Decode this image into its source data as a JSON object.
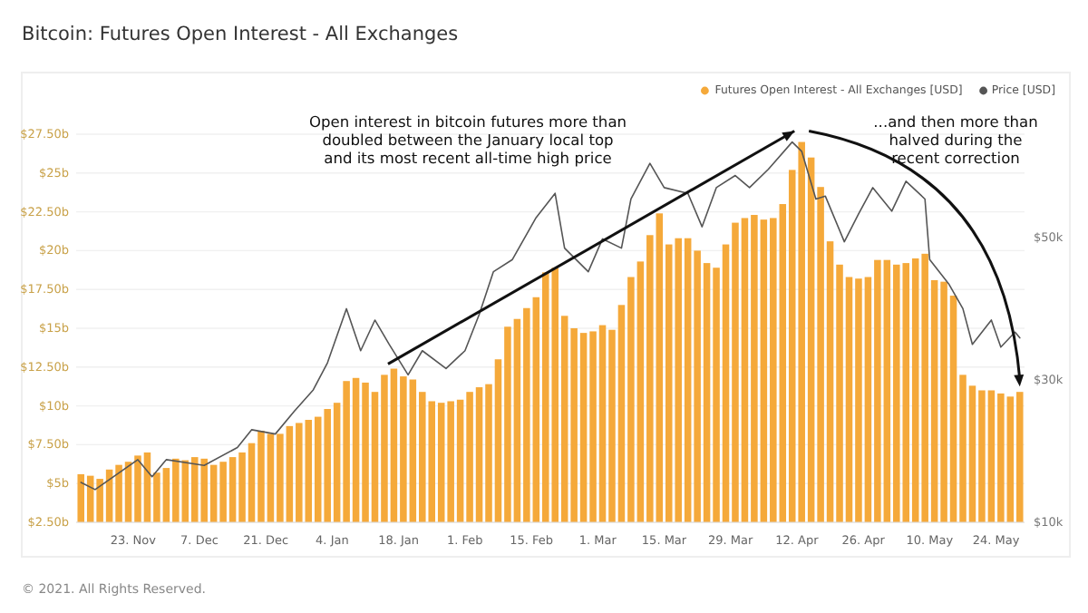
{
  "chart_data": {
    "type": "bar",
    "title": "Bitcoin: Futures Open Interest - All Exchanges",
    "annotations": [
      "Open interest in bitcoin futures more than\ndoubled between the January local top\nand its most recent all-time high price",
      "...and then more than\nhalved during the\nrecent correction",
      "© 2021. All Rights Reserved."
    ],
    "legend": "top right",
    "grid": "y",
    "xlim": [
      "2020-11-11",
      "2021-05-30"
    ],
    "xticks": [
      {
        "value": "2020-11-23",
        "label": "23. Nov"
      },
      {
        "value": "2020-12-07",
        "label": "7. Dec"
      },
      {
        "value": "2020-12-21",
        "label": "21. Dec"
      },
      {
        "value": "2021-01-04",
        "label": "4. Jan"
      },
      {
        "value": "2021-01-18",
        "label": "18. Jan"
      },
      {
        "value": "2021-02-01",
        "label": "1. Feb"
      },
      {
        "value": "2021-02-15",
        "label": "15. Feb"
      },
      {
        "value": "2021-03-01",
        "label": "1. Mar"
      },
      {
        "value": "2021-03-15",
        "label": "15. Mar"
      },
      {
        "value": "2021-03-29",
        "label": "29. Mar"
      },
      {
        "value": "2021-04-12",
        "label": "12. Apr"
      },
      {
        "value": "2021-04-26",
        "label": "26. Apr"
      },
      {
        "value": "2021-05-10",
        "label": "10. May"
      },
      {
        "value": "2021-05-24",
        "label": "24. May"
      }
    ],
    "ylim": [
      2.5,
      27.5
    ],
    "yticks": [
      {
        "value": 2.5,
        "label": "$2.50b"
      },
      {
        "value": 5,
        "label": "$5b"
      },
      {
        "value": 7.5,
        "label": "$7.50b"
      },
      {
        "value": 10,
        "label": "$10b"
      },
      {
        "value": 12.5,
        "label": "$12.50b"
      },
      {
        "value": 15,
        "label": "$15b"
      },
      {
        "value": 17.5,
        "label": "$17.50b"
      },
      {
        "value": 20,
        "label": "$20b"
      },
      {
        "value": 22.5,
        "label": "$22.50b"
      },
      {
        "value": 25,
        "label": "$25b"
      },
      {
        "value": 27.5,
        "label": "$27.50b"
      }
    ],
    "y2lim": [
      10000,
      64500
    ],
    "y2ticks": [
      {
        "value": 10000,
        "label": "$10k"
      },
      {
        "value": 30000,
        "label": "$30k"
      },
      {
        "value": 50000,
        "label": "$50k"
      }
    ],
    "series": [
      {
        "name": "Futures Open Interest - All Exchanges [USD]",
        "color": "#f5a93a",
        "x": [
          "2020-11-12",
          "2020-11-14",
          "2020-11-16",
          "2020-11-18",
          "2020-11-20",
          "2020-11-22",
          "2020-11-24",
          "2020-11-26",
          "2020-11-28",
          "2020-11-30",
          "2020-12-02",
          "2020-12-04",
          "2020-12-06",
          "2020-12-08",
          "2020-12-10",
          "2020-12-12",
          "2020-12-14",
          "2020-12-16",
          "2020-12-18",
          "2020-12-20",
          "2020-12-22",
          "2020-12-24",
          "2020-12-26",
          "2020-12-28",
          "2020-12-30",
          "2021-01-01",
          "2021-01-03",
          "2021-01-05",
          "2021-01-07",
          "2021-01-09",
          "2021-01-11",
          "2021-01-13",
          "2021-01-15",
          "2021-01-17",
          "2021-01-19",
          "2021-01-21",
          "2021-01-23",
          "2021-01-25",
          "2021-01-27",
          "2021-01-29",
          "2021-01-31",
          "2021-02-02",
          "2021-02-04",
          "2021-02-06",
          "2021-02-08",
          "2021-02-10",
          "2021-02-12",
          "2021-02-14",
          "2021-02-16",
          "2021-02-18",
          "2021-02-20",
          "2021-02-22",
          "2021-02-24",
          "2021-02-26",
          "2021-02-28",
          "2021-03-02",
          "2021-03-04",
          "2021-03-06",
          "2021-03-08",
          "2021-03-10",
          "2021-03-12",
          "2021-03-14",
          "2021-03-16",
          "2021-03-18",
          "2021-03-20",
          "2021-03-22",
          "2021-03-24",
          "2021-03-26",
          "2021-03-28",
          "2021-03-30",
          "2021-04-01",
          "2021-04-03",
          "2021-04-05",
          "2021-04-07",
          "2021-04-09",
          "2021-04-11",
          "2021-04-13",
          "2021-04-15",
          "2021-04-17",
          "2021-04-19",
          "2021-04-21",
          "2021-04-23",
          "2021-04-25",
          "2021-04-27",
          "2021-04-29",
          "2021-05-01",
          "2021-05-03",
          "2021-05-05",
          "2021-05-07",
          "2021-05-09",
          "2021-05-11",
          "2021-05-13",
          "2021-05-15",
          "2021-05-17",
          "2021-05-19",
          "2021-05-21",
          "2021-05-23",
          "2021-05-25",
          "2021-05-27",
          "2021-05-29"
        ],
        "values": [
          5.6,
          5.5,
          5.3,
          5.9,
          6.2,
          6.4,
          6.8,
          7.0,
          5.7,
          6.0,
          6.6,
          6.5,
          6.7,
          6.6,
          6.2,
          6.4,
          6.7,
          7.0,
          7.6,
          8.4,
          8.2,
          8.2,
          8.7,
          8.9,
          9.1,
          9.3,
          9.8,
          10.2,
          11.6,
          11.8,
          11.5,
          10.9,
          12.0,
          12.4,
          11.9,
          11.7,
          10.9,
          10.3,
          10.2,
          10.3,
          10.4,
          10.9,
          11.2,
          11.4,
          13.0,
          15.1,
          15.6,
          16.3,
          17.0,
          18.6,
          18.9,
          15.8,
          15.0,
          14.7,
          14.8,
          15.2,
          14.9,
          16.5,
          18.3,
          19.3,
          21.0,
          22.4,
          20.4,
          20.8,
          20.8,
          20.0,
          19.2,
          18.9,
          20.4,
          21.8,
          22.1,
          22.3,
          22.0,
          22.1,
          23.0,
          25.2,
          27.0,
          26.0,
          24.1,
          20.6,
          19.1,
          18.3,
          18.2,
          18.3,
          19.4,
          19.4,
          19.1,
          19.2,
          19.5,
          19.8,
          18.1,
          18.0,
          17.1,
          12.0,
          11.3,
          11.0,
          11.0,
          10.8,
          10.6,
          10.9
        ]
      },
      {
        "name": "Price [USD]",
        "type": "line",
        "axis": "y2",
        "color": "#555555",
        "x": [
          "2020-11-12",
          "2020-11-15",
          "2020-11-24",
          "2020-11-27",
          "2020-11-30",
          "2020-12-08",
          "2020-12-15",
          "2020-12-18",
          "2020-12-23",
          "2020-12-27",
          "2020-12-31",
          "2021-01-03",
          "2021-01-07",
          "2021-01-10",
          "2021-01-13",
          "2021-01-16",
          "2021-01-20",
          "2021-01-23",
          "2021-01-28",
          "2021-02-01",
          "2021-02-04",
          "2021-02-07",
          "2021-02-11",
          "2021-02-16",
          "2021-02-20",
          "2021-02-22",
          "2021-02-27",
          "2021-03-02",
          "2021-03-06",
          "2021-03-08",
          "2021-03-12",
          "2021-03-15",
          "2021-03-20",
          "2021-03-23",
          "2021-03-26",
          "2021-03-30",
          "2021-04-02",
          "2021-04-06",
          "2021-04-11",
          "2021-04-13",
          "2021-04-16",
          "2021-04-18",
          "2021-04-22",
          "2021-04-25",
          "2021-04-28",
          "2021-05-02",
          "2021-05-05",
          "2021-05-09",
          "2021-05-10",
          "2021-05-14",
          "2021-05-17",
          "2021-05-19",
          "2021-05-23",
          "2021-05-25",
          "2021-05-28",
          "2021-05-29"
        ],
        "values": [
          15600,
          14600,
          18800,
          16400,
          18800,
          18000,
          20500,
          23000,
          22400,
          25600,
          28600,
          32400,
          40000,
          34100,
          38400,
          35000,
          30700,
          34100,
          31600,
          34100,
          39200,
          45200,
          46900,
          52800,
          56200,
          48500,
          45200,
          49800,
          48500,
          55400,
          60400,
          57000,
          56200,
          51500,
          57000,
          58700,
          57000,
          59600,
          63400,
          62100,
          55400,
          55800,
          49400,
          53300,
          57000,
          53700,
          57900,
          55400,
          46900,
          43500,
          40000,
          35000,
          38400,
          34600,
          36700,
          35900
        ]
      }
    ]
  }
}
